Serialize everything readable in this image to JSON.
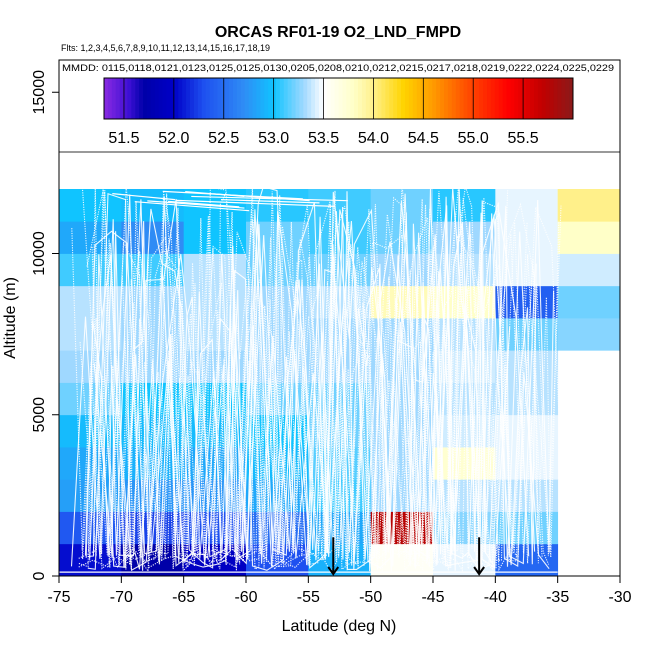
{
  "chart_data": {
    "type": "heatmap",
    "title": "ORCAS RF01-19 O2_LND_FMPD",
    "flights_label": "Flts: 1,2,3,4,5,6,7,8,9,10,11,12,13,14,15,16,17,18,19",
    "mmdd_label": "MMDD: 0115,0118,0121,0123,0125,0125,0130,0205,0208,0210,0212,0215,0217,0218,0219,0222,0224,0225,0229",
    "xlabel": "Latitude (deg N)",
    "ylabel": "Altitude (m)",
    "xlim": [
      -75,
      -30
    ],
    "ylim": [
      0,
      16000
    ],
    "x_ticks": [
      -75,
      -70,
      -65,
      -60,
      -55,
      -50,
      -45,
      -40,
      -35,
      -30
    ],
    "x_tick_labels": [
      "-75",
      "-70",
      "-65",
      "-60",
      "-55",
      "-50",
      "-45",
      "-40",
      "-35",
      "-30"
    ],
    "y_ticks": [
      0,
      5000,
      10000,
      15000
    ],
    "y_tick_labels": [
      "0",
      "5000",
      "10000",
      "15000"
    ],
    "colorbar": {
      "min": 51.3,
      "max": 56.0,
      "ticks": [
        51.5,
        52.0,
        52.5,
        53.0,
        53.5,
        54.0,
        54.5,
        55.0,
        55.5
      ],
      "tick_labels": [
        "51.5",
        "52.0",
        "52.5",
        "53.0",
        "53.5",
        "54.0",
        "54.5",
        "55.0",
        "55.5"
      ],
      "stops": [
        {
          "v": 51.3,
          "c": "#8a2be2"
        },
        {
          "v": 51.55,
          "c": "#3d0fd4"
        },
        {
          "v": 51.7,
          "c": "#0000a8"
        },
        {
          "v": 52.0,
          "c": "#0000c8"
        },
        {
          "v": 52.3,
          "c": "#1e50f0"
        },
        {
          "v": 52.7,
          "c": "#2f8cf5"
        },
        {
          "v": 53.0,
          "c": "#10c4ff"
        },
        {
          "v": 53.3,
          "c": "#9fd8ff"
        },
        {
          "v": 53.5,
          "c": "#ffffff"
        },
        {
          "v": 53.8,
          "c": "#ffffc8"
        },
        {
          "v": 54.0,
          "c": "#fff08a"
        },
        {
          "v": 54.3,
          "c": "#ffd400"
        },
        {
          "v": 54.6,
          "c": "#ff9a00"
        },
        {
          "v": 55.0,
          "c": "#ff4000"
        },
        {
          "v": 55.35,
          "c": "#ff0000"
        },
        {
          "v": 55.7,
          "c": "#c00000"
        },
        {
          "v": 56.0,
          "c": "#8b1a1a"
        }
      ]
    },
    "lat_bins": [
      -75,
      -70,
      -65,
      -60,
      -55,
      -50,
      -45,
      -40,
      -35,
      -30
    ],
    "alt_bins": [
      0,
      1000,
      2000,
      3000,
      4000,
      5000,
      6000,
      7000,
      8000,
      9000,
      10000,
      11000,
      12000
    ],
    "cells": [
      {
        "lat": [
          -75,
          -70
        ],
        "alt": [
          0,
          1000
        ],
        "v": 52.05
      },
      {
        "lat": [
          -70,
          -65
        ],
        "alt": [
          0,
          1000
        ],
        "v": 51.7
      },
      {
        "lat": [
          -65,
          -60
        ],
        "alt": [
          0,
          1000
        ],
        "v": 51.95
      },
      {
        "lat": [
          -60,
          -55
        ],
        "alt": [
          0,
          1000
        ],
        "v": 52.3
      },
      {
        "lat": [
          -55,
          -50
        ],
        "alt": [
          0,
          1000
        ],
        "v": 52.9
      },
      {
        "lat": [
          -50,
          -45
        ],
        "alt": [
          0,
          1000
        ],
        "v": 53.55
      },
      {
        "lat": [
          -45,
          -40
        ],
        "alt": [
          0,
          1000
        ],
        "v": 53.45
      },
      {
        "lat": [
          -40,
          -35
        ],
        "alt": [
          0,
          1000
        ],
        "v": 52.45
      },
      {
        "lat": [
          -75,
          -70
        ],
        "alt": [
          1000,
          2000
        ],
        "v": 52.35
      },
      {
        "lat": [
          -70,
          -65
        ],
        "alt": [
          1000,
          2000
        ],
        "v": 52.25
      },
      {
        "lat": [
          -65,
          -60
        ],
        "alt": [
          1000,
          2000
        ],
        "v": 52.3
      },
      {
        "lat": [
          -60,
          -55
        ],
        "alt": [
          1000,
          2000
        ],
        "v": 52.5
      },
      {
        "lat": [
          -55,
          -50
        ],
        "alt": [
          1000,
          2000
        ],
        "v": 52.85
      },
      {
        "lat": [
          -50,
          -45
        ],
        "alt": [
          1000,
          2000
        ],
        "v": 55.75
      },
      {
        "lat": [
          -45,
          -40
        ],
        "alt": [
          1000,
          2000
        ],
        "v": 53.25
      },
      {
        "lat": [
          -40,
          -35
        ],
        "alt": [
          1000,
          2000
        ],
        "v": 53.2
      },
      {
        "lat": [
          -75,
          -70
        ],
        "alt": [
          2000,
          3000
        ],
        "v": 52.8
      },
      {
        "lat": [
          -70,
          -65
        ],
        "alt": [
          2000,
          3000
        ],
        "v": 52.75
      },
      {
        "lat": [
          -65,
          -60
        ],
        "alt": [
          2000,
          3000
        ],
        "v": 52.75
      },
      {
        "lat": [
          -60,
          -55
        ],
        "alt": [
          2000,
          3000
        ],
        "v": 52.85
      },
      {
        "lat": [
          -55,
          -50
        ],
        "alt": [
          2000,
          3000
        ],
        "v": 53.1
      },
      {
        "lat": [
          -50,
          -45
        ],
        "alt": [
          2000,
          3000
        ],
        "v": 53.3
      },
      {
        "lat": [
          -45,
          -40
        ],
        "alt": [
          2000,
          3000
        ],
        "v": 53.35
      },
      {
        "lat": [
          -40,
          -35
        ],
        "alt": [
          2000,
          3000
        ],
        "v": 53.35
      },
      {
        "lat": [
          -75,
          -70
        ],
        "alt": [
          3000,
          4000
        ],
        "v": 52.85
      },
      {
        "lat": [
          -70,
          -65
        ],
        "alt": [
          3000,
          4000
        ],
        "v": 52.9
      },
      {
        "lat": [
          -65,
          -60
        ],
        "alt": [
          3000,
          4000
        ],
        "v": 52.85
      },
      {
        "lat": [
          -60,
          -55
        ],
        "alt": [
          3000,
          4000
        ],
        "v": 52.95
      },
      {
        "lat": [
          -55,
          -50
        ],
        "alt": [
          3000,
          4000
        ],
        "v": 53.15
      },
      {
        "lat": [
          -50,
          -45
        ],
        "alt": [
          3000,
          4000
        ],
        "v": 53.3
      },
      {
        "lat": [
          -45,
          -40
        ],
        "alt": [
          3000,
          4000
        ],
        "v": 53.75
      },
      {
        "lat": [
          -40,
          -35
        ],
        "alt": [
          3000,
          4000
        ],
        "v": 53.45
      },
      {
        "lat": [
          -75,
          -70
        ],
        "alt": [
          4000,
          5000
        ],
        "v": 52.95
      },
      {
        "lat": [
          -70,
          -65
        ],
        "alt": [
          4000,
          5000
        ],
        "v": 52.95
      },
      {
        "lat": [
          -65,
          -60
        ],
        "alt": [
          4000,
          5000
        ],
        "v": 52.95
      },
      {
        "lat": [
          -60,
          -55
        ],
        "alt": [
          4000,
          5000
        ],
        "v": 53.0
      },
      {
        "lat": [
          -55,
          -50
        ],
        "alt": [
          4000,
          5000
        ],
        "v": 53.2
      },
      {
        "lat": [
          -50,
          -45
        ],
        "alt": [
          4000,
          5000
        ],
        "v": 53.3
      },
      {
        "lat": [
          -45,
          -40
        ],
        "alt": [
          4000,
          5000
        ],
        "v": 53.4
      },
      {
        "lat": [
          -40,
          -35
        ],
        "alt": [
          4000,
          5000
        ],
        "v": 53.45
      },
      {
        "lat": [
          -75,
          -70
        ],
        "alt": [
          5000,
          6000
        ],
        "v": 53.2
      },
      {
        "lat": [
          -70,
          -65
        ],
        "alt": [
          5000,
          6000
        ],
        "v": 53.0
      },
      {
        "lat": [
          -65,
          -60
        ],
        "alt": [
          5000,
          6000
        ],
        "v": 53.0
      },
      {
        "lat": [
          -60,
          -55
        ],
        "alt": [
          5000,
          6000
        ],
        "v": 53.2
      },
      {
        "lat": [
          -55,
          -50
        ],
        "alt": [
          5000,
          6000
        ],
        "v": 53.2
      },
      {
        "lat": [
          -50,
          -45
        ],
        "alt": [
          5000,
          6000
        ],
        "v": 53.3
      },
      {
        "lat": [
          -45,
          -40
        ],
        "alt": [
          5000,
          6000
        ],
        "v": 53.35
      },
      {
        "lat": [
          -40,
          -35
        ],
        "alt": [
          5000,
          6000
        ],
        "v": 53.35
      },
      {
        "lat": [
          -75,
          -70
        ],
        "alt": [
          6000,
          7000
        ],
        "v": 53.3
      },
      {
        "lat": [
          -70,
          -65
        ],
        "alt": [
          6000,
          7000
        ],
        "v": 53.3
      },
      {
        "lat": [
          -65,
          -60
        ],
        "alt": [
          6000,
          7000
        ],
        "v": 53.3
      },
      {
        "lat": [
          -60,
          -55
        ],
        "alt": [
          6000,
          7000
        ],
        "v": 53.3
      },
      {
        "lat": [
          -55,
          -50
        ],
        "alt": [
          6000,
          7000
        ],
        "v": 53.3
      },
      {
        "lat": [
          -50,
          -45
        ],
        "alt": [
          6000,
          7000
        ],
        "v": 53.3
      },
      {
        "lat": [
          -45,
          -40
        ],
        "alt": [
          6000,
          7000
        ],
        "v": 53.4
      },
      {
        "lat": [
          -40,
          -35
        ],
        "alt": [
          6000,
          7000
        ],
        "v": 53.35
      },
      {
        "lat": [
          -75,
          -70
        ],
        "alt": [
          7000,
          8000
        ],
        "v": 53.35
      },
      {
        "lat": [
          -70,
          -65
        ],
        "alt": [
          7000,
          8000
        ],
        "v": 53.3
      },
      {
        "lat": [
          -65,
          -60
        ],
        "alt": [
          7000,
          8000
        ],
        "v": 53.35
      },
      {
        "lat": [
          -60,
          -55
        ],
        "alt": [
          7000,
          8000
        ],
        "v": 53.3
      },
      {
        "lat": [
          -55,
          -50
        ],
        "alt": [
          7000,
          8000
        ],
        "v": 53.3
      },
      {
        "lat": [
          -50,
          -45
        ],
        "alt": [
          7000,
          8000
        ],
        "v": 53.3
      },
      {
        "lat": [
          -45,
          -40
        ],
        "alt": [
          7000,
          8000
        ],
        "v": 53.35
      },
      {
        "lat": [
          -40,
          -35
        ],
        "alt": [
          7000,
          8000
        ],
        "v": 53.2
      },
      {
        "lat": [
          -35,
          -30
        ],
        "alt": [
          7000,
          8000
        ],
        "v": 53.25
      },
      {
        "lat": [
          -75,
          -70
        ],
        "alt": [
          8000,
          9000
        ],
        "v": 53.35
      },
      {
        "lat": [
          -70,
          -65
        ],
        "alt": [
          8000,
          9000
        ],
        "v": 53.3
      },
      {
        "lat": [
          -65,
          -60
        ],
        "alt": [
          8000,
          9000
        ],
        "v": 53.35
      },
      {
        "lat": [
          -60,
          -55
        ],
        "alt": [
          8000,
          9000
        ],
        "v": 53.3
      },
      {
        "lat": [
          -55,
          -50
        ],
        "alt": [
          8000,
          9000
        ],
        "v": 53.35
      },
      {
        "lat": [
          -50,
          -45
        ],
        "alt": [
          8000,
          9000
        ],
        "v": 53.85
      },
      {
        "lat": [
          -45,
          -40
        ],
        "alt": [
          8000,
          9000
        ],
        "v": 53.8
      },
      {
        "lat": [
          -40,
          -35
        ],
        "alt": [
          8000,
          9000
        ],
        "v": 52.4
      },
      {
        "lat": [
          -35,
          -30
        ],
        "alt": [
          8000,
          9000
        ],
        "v": 53.2
      },
      {
        "lat": [
          -75,
          -70
        ],
        "alt": [
          9000,
          10000
        ],
        "v": 53.1
      },
      {
        "lat": [
          -70,
          -65
        ],
        "alt": [
          9000,
          10000
        ],
        "v": 53.1
      },
      {
        "lat": [
          -65,
          -60
        ],
        "alt": [
          9000,
          10000
        ],
        "v": 53.35
      },
      {
        "lat": [
          -60,
          -55
        ],
        "alt": [
          9000,
          10000
        ],
        "v": 53.2
      },
      {
        "lat": [
          -55,
          -50
        ],
        "alt": [
          9000,
          10000
        ],
        "v": 53.2
      },
      {
        "lat": [
          -50,
          -45
        ],
        "alt": [
          9000,
          10000
        ],
        "v": 53.3
      },
      {
        "lat": [
          -45,
          -40
        ],
        "alt": [
          9000,
          10000
        ],
        "v": 53.35
      },
      {
        "lat": [
          -40,
          -35
        ],
        "alt": [
          9000,
          10000
        ],
        "v": 53.45
      },
      {
        "lat": [
          -35,
          -30
        ],
        "alt": [
          9000,
          10000
        ],
        "v": 53.4
      },
      {
        "lat": [
          -75,
          -70
        ],
        "alt": [
          10000,
          11000
        ],
        "v": 52.85
      },
      {
        "lat": [
          -70,
          -65
        ],
        "alt": [
          10000,
          11000
        ],
        "v": 52.7
      },
      {
        "lat": [
          -65,
          -60
        ],
        "alt": [
          10000,
          11000
        ],
        "v": 53.0
      },
      {
        "lat": [
          -60,
          -55
        ],
        "alt": [
          10000,
          11000
        ],
        "v": 53.2
      },
      {
        "lat": [
          -55,
          -50
        ],
        "alt": [
          10000,
          11000
        ],
        "v": 53.1
      },
      {
        "lat": [
          -50,
          -45
        ],
        "alt": [
          10000,
          11000
        ],
        "v": 53.2
      },
      {
        "lat": [
          -45,
          -40
        ],
        "alt": [
          10000,
          11000
        ],
        "v": 53.3
      },
      {
        "lat": [
          -40,
          -35
        ],
        "alt": [
          10000,
          11000
        ],
        "v": 53.45
      },
      {
        "lat": [
          -35,
          -30
        ],
        "alt": [
          10000,
          11000
        ],
        "v": 53.8
      },
      {
        "lat": [
          -75,
          -70
        ],
        "alt": [
          11000,
          12000
        ],
        "v": 53.0
      },
      {
        "lat": [
          -70,
          -65
        ],
        "alt": [
          11000,
          12000
        ],
        "v": 52.95
      },
      {
        "lat": [
          -65,
          -60
        ],
        "alt": [
          11000,
          12000
        ],
        "v": 53.0
      },
      {
        "lat": [
          -60,
          -55
        ],
        "alt": [
          11000,
          12000
        ],
        "v": 53.05
      },
      {
        "lat": [
          -55,
          -50
        ],
        "alt": [
          11000,
          12000
        ],
        "v": 53.1
      },
      {
        "lat": [
          -50,
          -45
        ],
        "alt": [
          11000,
          12000
        ],
        "v": 53.2
      },
      {
        "lat": [
          -45,
          -40
        ],
        "alt": [
          11000,
          12000
        ],
        "v": 53.05
      },
      {
        "lat": [
          -40,
          -35
        ],
        "alt": [
          11000,
          12000
        ],
        "v": 53.45
      },
      {
        "lat": [
          -35,
          -30
        ],
        "alt": [
          11000,
          12000
        ],
        "v": 54.0
      }
    ],
    "markers": [
      {
        "type": "arrow-down",
        "lat": -53.0,
        "alt": 200
      },
      {
        "type": "arrow-down",
        "lat": -41.3,
        "alt": 200
      }
    ],
    "flight_track_color": "#ffffff"
  }
}
